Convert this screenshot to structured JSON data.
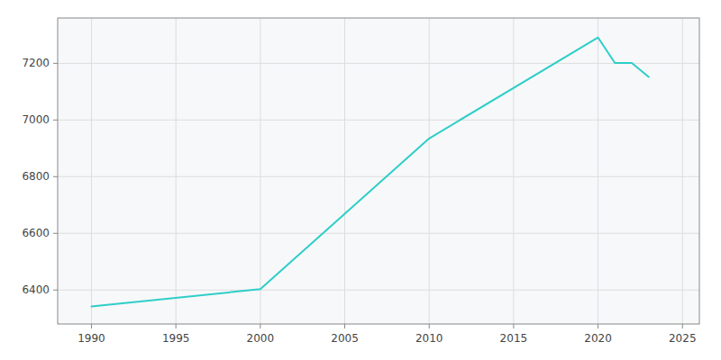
{
  "chart_data": {
    "type": "line",
    "x": [
      1990,
      2000,
      2010,
      2020,
      2021,
      2022,
      2023
    ],
    "values": [
      6342,
      6403,
      6935,
      7291,
      7201,
      7201,
      7152
    ],
    "color": "#2ecec8",
    "xlim": [
      1988,
      2026
    ],
    "ylim": [
      6280,
      7360
    ],
    "xticks": [
      1990,
      1995,
      2000,
      2005,
      2010,
      2015,
      2020,
      2025
    ],
    "yticks": [
      6400,
      6600,
      6800,
      7000,
      7200
    ],
    "grid": true
  }
}
